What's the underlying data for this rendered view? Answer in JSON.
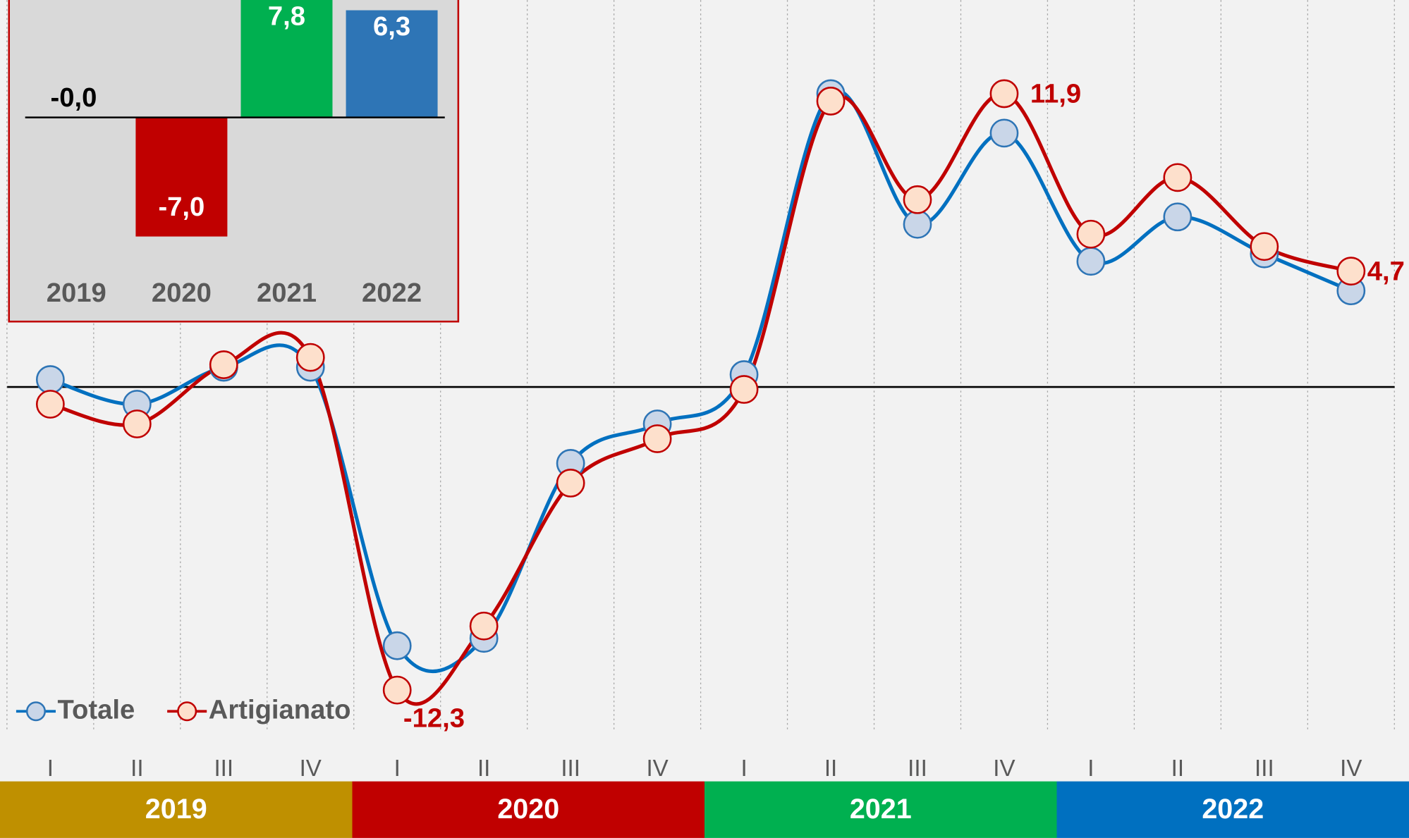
{
  "chart_data": [
    {
      "type": "line",
      "categories": [
        "I",
        "II",
        "III",
        "IV",
        "I",
        "II",
        "III",
        "IV",
        "I",
        "II",
        "III",
        "IV",
        "I",
        "II",
        "III",
        "IV"
      ],
      "x_groups": [
        {
          "label": "2019",
          "color": "#bf9000"
        },
        {
          "label": "2020",
          "color": "#c00000"
        },
        {
          "label": "2021",
          "color": "#00b050"
        },
        {
          "label": "2022",
          "color": "#0070c0"
        }
      ],
      "series": [
        {
          "name": "Totale",
          "color": "#0070c0",
          "marker_fill": "#c9d6e8",
          "marker_stroke": "#2e75b6",
          "values": [
            0.3,
            -0.7,
            0.8,
            0.8,
            -10.5,
            -10.2,
            -3.1,
            -1.5,
            0.5,
            11.9,
            6.6,
            10.3,
            5.1,
            6.9,
            5.4,
            3.9
          ]
        },
        {
          "name": "Artigianato",
          "color": "#c00000",
          "marker_fill": "#fde0cc",
          "marker_stroke": "#c00000",
          "values": [
            -0.7,
            -1.5,
            0.9,
            1.2,
            -12.3,
            -9.7,
            -3.9,
            -2.1,
            -0.1,
            11.6,
            7.6,
            11.9,
            6.2,
            8.5,
            5.7,
            4.7
          ],
          "value_labels": [
            null,
            null,
            null,
            null,
            "-12,3",
            null,
            null,
            null,
            null,
            null,
            null,
            "11,9",
            null,
            null,
            null,
            "4,7"
          ]
        }
      ],
      "ylim": [
        -14,
        15.7
      ],
      "legend": "bottom-left"
    },
    {
      "type": "bar",
      "categories": [
        "2019",
        "2020",
        "2021",
        "2022"
      ],
      "values": [
        -0.0,
        -7.0,
        7.8,
        6.3
      ],
      "value_labels": [
        "-0,0",
        "-7,0",
        "7,8",
        "6,3"
      ],
      "colors": [
        "#000000",
        "#c00000",
        "#00b050",
        "#2e75b6"
      ],
      "ylim": [
        -12,
        6.9
      ]
    }
  ]
}
